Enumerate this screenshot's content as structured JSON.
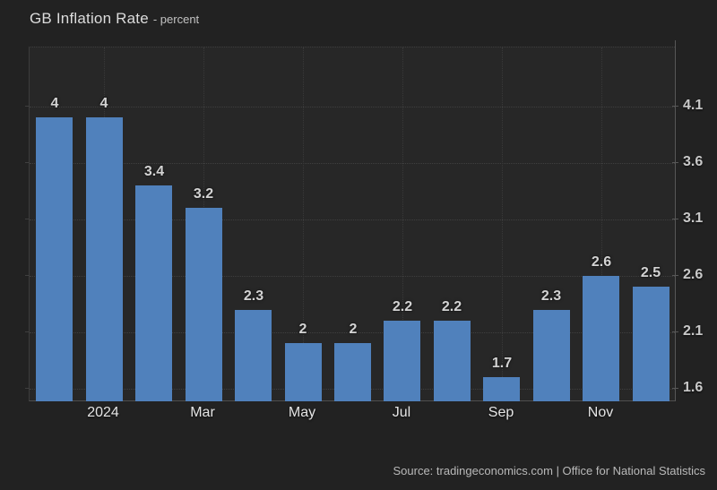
{
  "header": {
    "title": "GB Inflation Rate",
    "subtitle": "- percent"
  },
  "footer": {
    "source": "Source: tradingeconomics.com | Office for National Statistics"
  },
  "colors": {
    "bar": "#5081bc",
    "background": "#222222",
    "plot_background": "#272727",
    "grid": "#3f3f3f"
  },
  "chart_data": {
    "type": "bar",
    "title": "GB Inflation Rate",
    "subtitle": "- percent",
    "ylabel": "percent",
    "xlabel": "",
    "values": [
      4,
      4,
      3.4,
      3.2,
      2.3,
      2,
      2,
      2.2,
      2.2,
      1.7,
      2.3,
      2.6,
      2.5
    ],
    "bar_labels": [
      "4",
      "4",
      "3.4",
      "3.2",
      "2.3",
      "2",
      "2",
      "2.2",
      "2.2",
      "1.7",
      "2.3",
      "2.6",
      "2.5"
    ],
    "x_ticks": [
      {
        "index": 1,
        "label": "2024"
      },
      {
        "index": 3,
        "label": "Mar"
      },
      {
        "index": 5,
        "label": "May"
      },
      {
        "index": 7,
        "label": "Jul"
      },
      {
        "index": 9,
        "label": "Sep"
      },
      {
        "index": 11,
        "label": "Nov"
      }
    ],
    "y_ticks": [
      "4.1",
      "3.6",
      "3.1",
      "2.6",
      "2.1",
      "1.6"
    ],
    "y_axis_side": "right",
    "ylim": [
      1.48,
      4.62
    ],
    "grid": "dotted",
    "legend": "none"
  }
}
